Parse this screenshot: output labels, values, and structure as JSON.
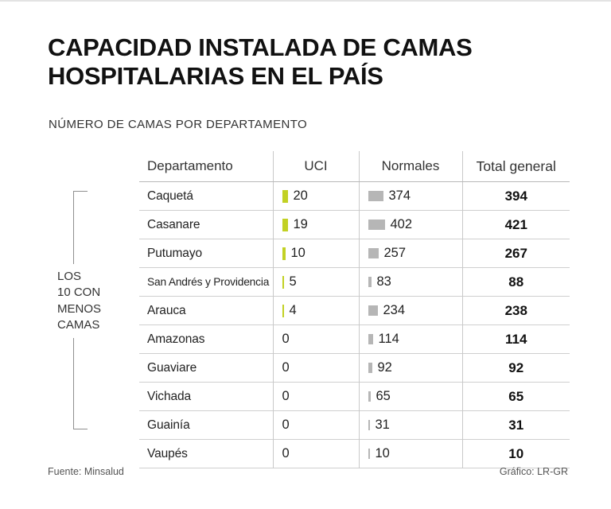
{
  "title": "CAPACIDAD INSTALADA DE CAMAS\nHOSPITALARIAS EN EL PAÍS",
  "subtitle": "NÚMERO DE CAMAS POR DEPARTAMENTO",
  "bracket_label": "LOS\n10 CON\nMENOS\nCAMAS",
  "table": {
    "headers": [
      "Departamento",
      "UCI",
      "Normales",
      "Total general"
    ],
    "rows": [
      {
        "departamento": "Caquetá",
        "uci": 20,
        "normales": 374,
        "total": 394
      },
      {
        "departamento": "Casanare",
        "uci": 19,
        "normales": 402,
        "total": 421
      },
      {
        "departamento": "Putumayo",
        "uci": 10,
        "normales": 257,
        "total": 267
      },
      {
        "departamento": "San Andrés y Providencia",
        "uci": 5,
        "normales": 83,
        "total": 88
      },
      {
        "departamento": "Arauca",
        "uci": 4,
        "normales": 234,
        "total": 238
      },
      {
        "departamento": "Amazonas",
        "uci": 0,
        "normales": 114,
        "total": 114
      },
      {
        "departamento": "Guaviare",
        "uci": 0,
        "normales": 92,
        "total": 92
      },
      {
        "departamento": "Vichada",
        "uci": 0,
        "normales": 65,
        "total": 65
      },
      {
        "departamento": "Guainía",
        "uci": 0,
        "normales": 31,
        "total": 31
      },
      {
        "departamento": "Vaupés",
        "uci": 0,
        "normales": 10,
        "total": 10
      }
    ]
  },
  "footer": {
    "source": "Fuente: Minsalud",
    "credit": "Gráfico: LR-GR"
  },
  "colors": {
    "uci_bar": "#c2d124",
    "normales_bar": "#b6b6b6",
    "line": "#8f8f8f"
  },
  "chart_data": {
    "type": "table",
    "title": "CAPACIDAD INSTALADA DE CAMAS HOSPITALARIAS EN EL PAÍS",
    "subtitle": "NÚMERO DE CAMAS POR DEPARTAMENTO",
    "categories": [
      "Caquetá",
      "Casanare",
      "Putumayo",
      "San Andrés y Providencia",
      "Arauca",
      "Amazonas",
      "Guaviare",
      "Vichada",
      "Guainía",
      "Vaupés"
    ],
    "series": [
      {
        "name": "UCI",
        "values": [
          20,
          19,
          10,
          5,
          4,
          0,
          0,
          0,
          0,
          0
        ]
      },
      {
        "name": "Normales",
        "values": [
          374,
          402,
          257,
          83,
          234,
          114,
          92,
          65,
          31,
          10
        ]
      },
      {
        "name": "Total general",
        "values": [
          394,
          421,
          267,
          88,
          238,
          114,
          92,
          65,
          31,
          10
        ]
      }
    ],
    "annotation": "LOS 10 CON MENOS CAMAS",
    "source": "Fuente: Minsalud",
    "credit": "Gráfico: LR-GR",
    "legend_position": "none",
    "grid": false
  }
}
